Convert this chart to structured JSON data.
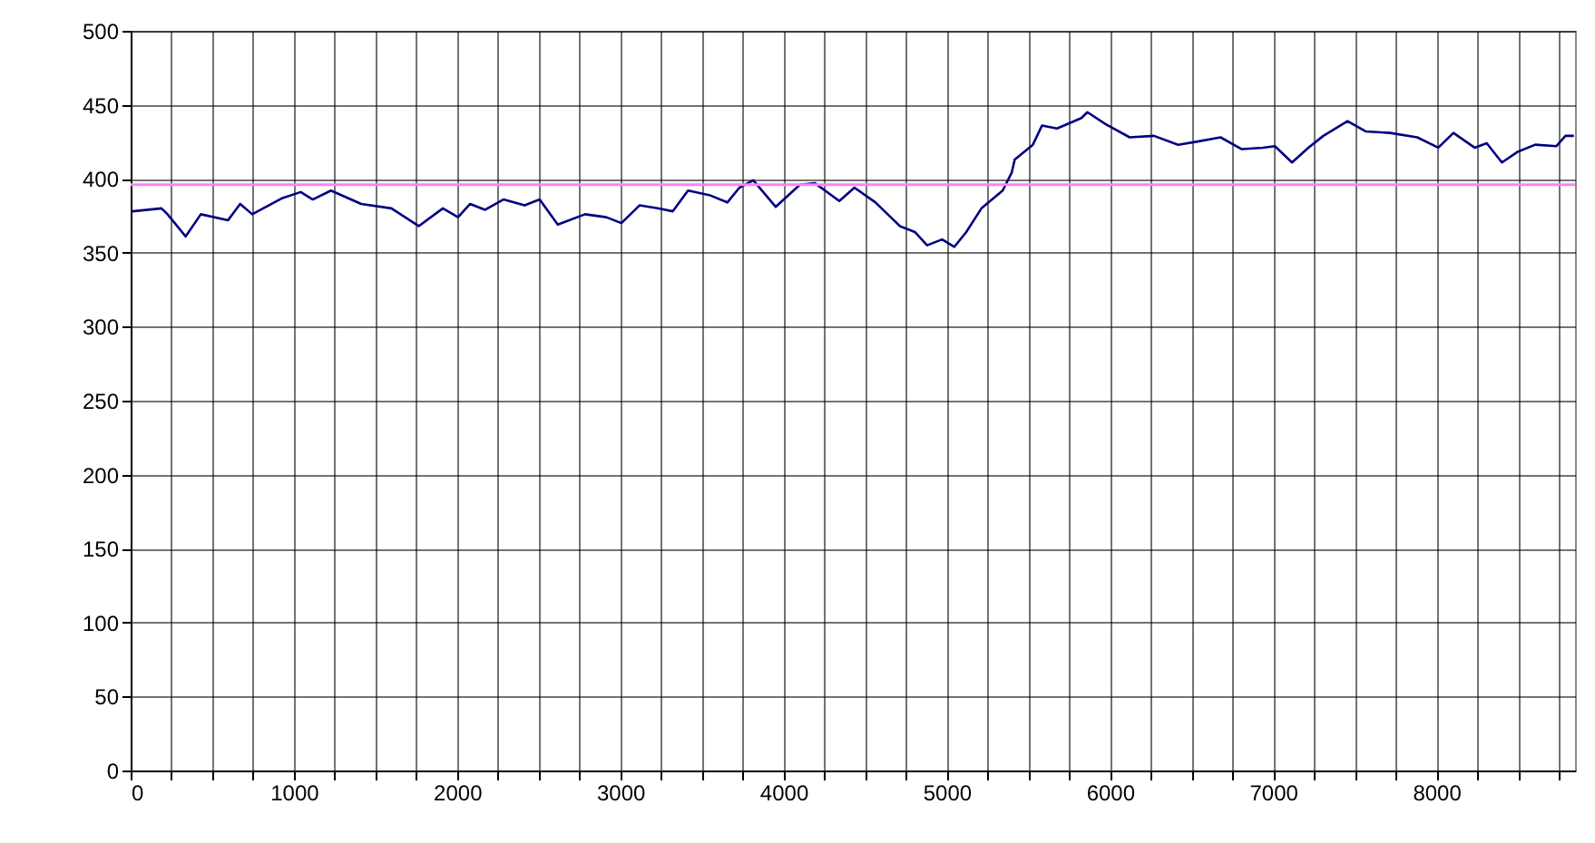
{
  "chart_data": {
    "type": "line",
    "x": [
      11,
      189,
      226,
      337,
      430,
      597,
      671,
      745,
      931,
      1042,
      1116,
      1227,
      1413,
      1598,
      1765,
      1913,
      2006,
      2080,
      2172,
      2284,
      2414,
      2506,
      2617,
      2784,
      2914,
      3007,
      3118,
      3229,
      3322,
      3415,
      3545,
      3656,
      3730,
      3815,
      3952,
      4101,
      4193,
      4342,
      4435,
      4564,
      4713,
      4805,
      4880,
      4972,
      5047,
      5120,
      5213,
      5343,
      5398,
      5417,
      5528,
      5584,
      5676,
      5825,
      5862,
      5973,
      6121,
      6270,
      6418,
      6530,
      6678,
      6808,
      6938,
      7011,
      7116,
      7216,
      7308,
      7456,
      7567,
      7716,
      7883,
      8012,
      8105,
      8235,
      8309,
      8402,
      8495,
      8606,
      8735,
      8791,
      8843
    ],
    "series": [
      {
        "color": "#000080",
        "values": [
          378,
          380,
          376,
          361,
          376,
          372,
          383,
          376,
          387,
          391,
          386,
          392,
          383,
          380,
          368,
          380,
          374,
          383,
          379,
          386,
          382,
          386,
          369,
          376,
          374,
          370,
          382,
          380,
          378,
          392,
          389,
          384,
          394,
          399,
          381,
          396,
          397,
          385,
          394,
          384,
          368,
          364,
          355,
          359,
          354,
          364,
          380,
          392,
          404,
          413,
          423,
          436,
          434,
          441,
          445,
          437,
          428,
          429,
          423,
          425,
          428,
          420,
          421,
          422,
          411,
          421,
          429,
          439,
          432,
          431,
          428,
          421,
          431,
          421,
          424,
          411,
          418,
          423,
          422,
          429,
          429
        ]
      }
    ],
    "xlim": [
      0,
      8850
    ],
    "xticks": [
      0,
      {
        "value": 250,
        "label": null
      },
      {
        "value": 500,
        "label": null
      },
      {
        "value": 750,
        "label": null
      },
      1000,
      {
        "value": 1250,
        "label": null
      },
      {
        "value": 1500,
        "label": null
      },
      {
        "value": 1750,
        "label": null
      },
      2000,
      {
        "value": 2250,
        "label": null
      },
      {
        "value": 2500,
        "label": null
      },
      {
        "value": 2750,
        "label": null
      },
      3000,
      {
        "value": 3250,
        "label": null
      },
      {
        "value": 3500,
        "label": null
      },
      {
        "value": 3750,
        "label": null
      },
      4000,
      {
        "value": 4250,
        "label": null
      },
      {
        "value": 4500,
        "label": null
      },
      {
        "value": 4750,
        "label": null
      },
      5000,
      {
        "value": 5250,
        "label": null
      },
      {
        "value": 5500,
        "label": null
      },
      {
        "value": 5750,
        "label": null
      },
      6000,
      {
        "value": 6250,
        "label": null
      },
      {
        "value": 6500,
        "label": null
      },
      {
        "value": 6750,
        "label": null
      },
      7000,
      {
        "value": 7250,
        "label": null
      },
      {
        "value": 7500,
        "label": null
      },
      {
        "value": 7750,
        "label": null
      },
      8000,
      {
        "value": 8250,
        "label": null
      },
      {
        "value": 8500,
        "label": null
      },
      {
        "value": 8750,
        "label": null
      }
    ],
    "ylim": [
      0,
      500
    ],
    "yticks": [
      0,
      50,
      100,
      150,
      200,
      250,
      300,
      350,
      400,
      450,
      500
    ],
    "ref_lines": [
      {
        "axis": "y",
        "value": 396,
        "color": "#ff80ff"
      }
    ],
    "grid": true,
    "marker": "none",
    "line_style": "solid"
  }
}
